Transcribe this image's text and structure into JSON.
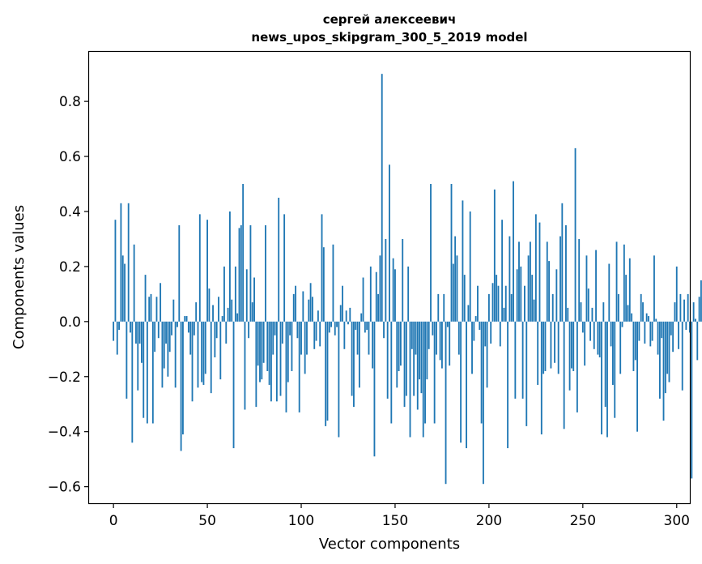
{
  "chart_data": {
    "type": "bar",
    "title_line1": "сергей алексеевич",
    "title_line2": "news_upos_skipgram_300_5_2019 model",
    "xlabel": "Vector components",
    "ylabel": "Components values",
    "xlim": [
      -13,
      307
    ],
    "ylim": [
      -0.66,
      0.98
    ],
    "xticks": [
      0,
      50,
      100,
      150,
      200,
      250,
      300
    ],
    "xtick_labels": [
      "0",
      "50",
      "100",
      "150",
      "200",
      "250",
      "300"
    ],
    "yticks": [
      -0.6,
      -0.4,
      -0.2,
      0.0,
      0.2,
      0.4,
      0.6,
      0.8
    ],
    "ytick_labels": [
      "−0.6",
      "−0.4",
      "−0.2",
      "0.0",
      "0.2",
      "0.4",
      "0.6",
      "0.8"
    ],
    "bar_color": "#1f77b4",
    "values": [
      -0.07,
      0.37,
      -0.12,
      -0.03,
      0.43,
      0.24,
      0.21,
      -0.28,
      0.43,
      -0.04,
      -0.44,
      0.28,
      -0.08,
      -0.25,
      -0.08,
      -0.15,
      -0.35,
      0.17,
      -0.37,
      0.09,
      0.1,
      -0.37,
      -0.11,
      0.09,
      -0.06,
      0.14,
      -0.24,
      -0.17,
      -0.08,
      -0.2,
      -0.11,
      -0.05,
      0.08,
      -0.24,
      -0.02,
      0.35,
      -0.47,
      -0.41,
      0.02,
      0.02,
      -0.04,
      -0.12,
      -0.29,
      -0.05,
      0.07,
      -0.24,
      0.39,
      -0.22,
      -0.23,
      -0.19,
      0.37,
      0.12,
      -0.26,
      0.06,
      -0.13,
      -0.06,
      0.09,
      -0.21,
      0.02,
      0.2,
      -0.08,
      0.05,
      0.4,
      0.08,
      -0.46,
      0.2,
      0.03,
      0.34,
      0.35,
      0.5,
      -0.32,
      0.19,
      -0.06,
      0.35,
      0.07,
      0.16,
      -0.31,
      -0.16,
      -0.22,
      -0.21,
      -0.15,
      0.35,
      -0.18,
      -0.23,
      -0.29,
      -0.12,
      -0.05,
      -0.29,
      0.45,
      -0.27,
      -0.08,
      0.39,
      -0.33,
      -0.22,
      -0.05,
      -0.18,
      0.1,
      0.13,
      -0.06,
      -0.33,
      -0.12,
      0.11,
      -0.19,
      -0.12,
      0.08,
      0.14,
      0.09,
      -0.1,
      -0.07,
      0.04,
      -0.09,
      0.39,
      0.27,
      -0.38,
      -0.36,
      -0.04,
      -0.02,
      0.28,
      -0.05,
      -0.02,
      -0.42,
      0.06,
      0.13,
      -0.1,
      0.04,
      -0.01,
      0.05,
      -0.27,
      -0.31,
      -0.03,
      -0.12,
      -0.24,
      0.03,
      0.16,
      -0.04,
      -0.03,
      -0.12,
      0.2,
      -0.17,
      -0.49,
      0.18,
      0.1,
      0.24,
      0.9,
      -0.06,
      0.3,
      -0.28,
      0.57,
      -0.37,
      0.23,
      0.19,
      -0.24,
      -0.18,
      -0.16,
      0.3,
      -0.31,
      -0.27,
      0.2,
      -0.42,
      -0.1,
      -0.27,
      -0.12,
      -0.32,
      -0.21,
      -0.26,
      -0.42,
      -0.37,
      -0.21,
      -0.1,
      0.5,
      -0.05,
      -0.37,
      -0.12,
      0.1,
      -0.14,
      -0.17,
      0.1,
      -0.59,
      -0.02,
      -0.16,
      0.5,
      0.21,
      0.31,
      0.24,
      -0.12,
      -0.44,
      0.44,
      0.17,
      -0.46,
      0.06,
      0.4,
      -0.19,
      -0.07,
      0.02,
      0.13,
      -0.03,
      -0.37,
      -0.59,
      -0.09,
      -0.24,
      0.1,
      -0.08,
      0.14,
      0.48,
      0.17,
      0.13,
      -0.09,
      0.37,
      0.05,
      0.13,
      -0.46,
      0.31,
      0.1,
      0.51,
      -0.28,
      0.19,
      0.29,
      0.2,
      -0.28,
      0.13,
      -0.38,
      0.24,
      0.29,
      0.17,
      0.08,
      0.39,
      -0.23,
      0.36,
      -0.41,
      -0.19,
      -0.18,
      0.29,
      0.22,
      -0.17,
      0.1,
      -0.15,
      0.19,
      -0.19,
      0.31,
      0.43,
      -0.39,
      0.35,
      0.05,
      -0.25,
      -0.17,
      -0.18,
      0.63,
      -0.33,
      0.3,
      0.07,
      -0.04,
      -0.16,
      0.24,
      0.12,
      -0.07,
      0.05,
      -0.1,
      0.26,
      -0.12,
      -0.13,
      -0.41,
      0.07,
      -0.31,
      -0.42,
      0.21,
      -0.09,
      -0.23,
      -0.35,
      0.29,
      0.1,
      -0.19,
      -0.02,
      0.28,
      0.17,
      0.06,
      0.23,
      0.03,
      -0.18,
      -0.14,
      -0.4,
      -0.07,
      0.1,
      0.07,
      -0.08,
      0.03,
      0.02,
      -0.09,
      -0.07,
      0.24,
      0.01,
      -0.12,
      -0.28,
      -0.06,
      -0.36,
      -0.26,
      -0.19,
      -0.22,
      -0.05,
      -0.11,
      0.07,
      0.2,
      -0.1,
      0.1,
      -0.25,
      0.08,
      -0.03,
      0.1,
      -0.04,
      -0.57,
      0.07,
      0.01,
      -0.14,
      0.09,
      0.15
    ]
  }
}
